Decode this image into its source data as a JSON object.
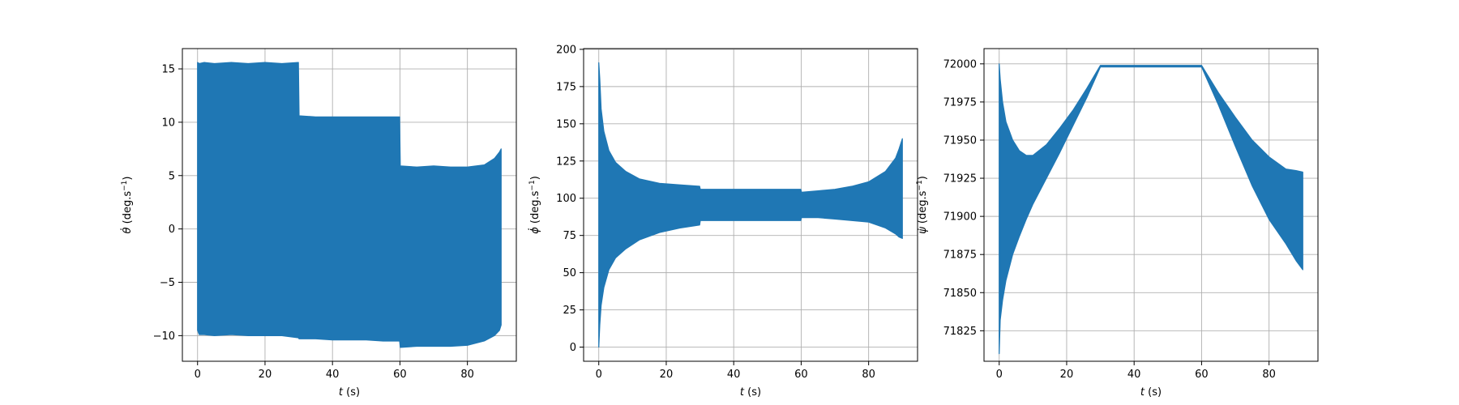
{
  "figure": {
    "background": "#ffffff",
    "series_color": "#1f77b4",
    "grid_color": "#b0b0b0"
  },
  "chart_data": [
    {
      "type": "area",
      "xlabel_var": "t",
      "xlabel_unit": " (s)",
      "ylabel_var": "θ̇",
      "ylabel_unit": " (deg.s",
      "ylabel_exp": "−1",
      "ylabel_close": ")",
      "xlim": [
        -4.5,
        94.5
      ],
      "ylim": [
        -12.4,
        16.9
      ],
      "xticks": [
        0,
        20,
        40,
        60,
        80
      ],
      "yticks": [
        -10,
        -5,
        0,
        5,
        10,
        15
      ],
      "grid": true,
      "series": [
        {
          "kind": "band",
          "x": [
            0,
            0.5,
            2,
            5,
            10,
            15,
            20,
            25,
            29.9,
            30.1,
            35,
            40,
            45,
            50,
            55,
            59.9,
            60.1,
            65,
            70,
            75,
            80,
            85,
            88,
            89.5,
            90
          ],
          "upper": [
            15.6,
            15.5,
            15.6,
            15.5,
            15.6,
            15.5,
            15.6,
            15.5,
            15.6,
            10.6,
            10.5,
            10.5,
            10.5,
            10.5,
            10.5,
            10.5,
            5.9,
            5.8,
            5.9,
            5.8,
            5.8,
            6.0,
            6.6,
            7.2,
            7.5
          ],
          "lower": [
            -9.5,
            -9.9,
            -9.9,
            -10.0,
            -9.9,
            -10.0,
            -10.0,
            -10.0,
            -10.2,
            -10.3,
            -10.3,
            -10.4,
            -10.4,
            -10.4,
            -10.5,
            -10.5,
            -11.1,
            -11.0,
            -11.0,
            -11.0,
            -10.9,
            -10.5,
            -10.0,
            -9.5,
            -9.0
          ]
        }
      ]
    },
    {
      "type": "area",
      "xlabel_var": "t",
      "xlabel_unit": " (s)",
      "ylabel_var": "ϕ̇",
      "ylabel_unit": " (deg.s",
      "ylabel_exp": "−1",
      "ylabel_close": ")",
      "xlim": [
        -4.5,
        94.5
      ],
      "ylim": [
        -9.5,
        200.5
      ],
      "xticks": [
        0,
        20,
        40,
        60,
        80
      ],
      "yticks": [
        0,
        25,
        50,
        75,
        100,
        125,
        150,
        175,
        200
      ],
      "grid": true,
      "series": [
        {
          "kind": "band",
          "x": [
            0,
            0.3,
            0.7,
            1.5,
            3,
            5,
            8,
            12,
            18,
            24,
            29.9,
            30.1,
            40,
            50,
            59.9,
            60.1,
            65,
            70,
            75,
            80,
            85,
            88,
            89,
            90
          ],
          "upper": [
            191,
            180,
            160,
            145,
            132,
            124,
            118,
            113,
            110,
            109,
            108,
            106,
            106,
            106,
            106,
            104,
            105,
            106,
            108,
            111,
            118,
            127,
            133,
            140
          ],
          "lower": [
            0,
            15,
            28,
            40,
            52,
            60,
            66,
            72,
            77,
            80,
            82,
            85,
            85,
            85,
            85,
            87,
            87,
            86,
            85,
            84,
            80,
            76,
            74,
            73
          ]
        }
      ]
    },
    {
      "type": "area",
      "xlabel_var": "t",
      "xlabel_unit": " (s)",
      "ylabel_var": "ψ̇",
      "ylabel_unit": " (deg.s",
      "ylabel_exp": "−1",
      "ylabel_close": ")",
      "xlim": [
        -4.5,
        94.5
      ],
      "ylim": [
        71805,
        72010
      ],
      "xticks": [
        0,
        20,
        40,
        60,
        80
      ],
      "yticks": [
        71825,
        71850,
        71875,
        71900,
        71925,
        71950,
        71975,
        72000
      ],
      "grid": true,
      "series": [
        {
          "kind": "band",
          "x": [
            0,
            0.3,
            1,
            2,
            4,
            6,
            8,
            10,
            14,
            18,
            22,
            26,
            30,
            40,
            50,
            60,
            65,
            70,
            75,
            80,
            85,
            88,
            90
          ],
          "upper": [
            72000,
            71990,
            71975,
            71962,
            71950,
            71943,
            71940,
            71940,
            71947,
            71958,
            71970,
            71984,
            71999,
            71999,
            71999,
            71999,
            71981,
            71965,
            71950,
            71939,
            71931,
            71930,
            71929
          ],
          "lower": [
            71810,
            71832,
            71845,
            71858,
            71875,
            71887,
            71898,
            71908,
            71925,
            71942,
            71960,
            71978,
            71998,
            71998,
            71998,
            71998,
            71973,
            71946,
            71920,
            71898,
            71882,
            71871,
            71865
          ]
        }
      ]
    }
  ]
}
